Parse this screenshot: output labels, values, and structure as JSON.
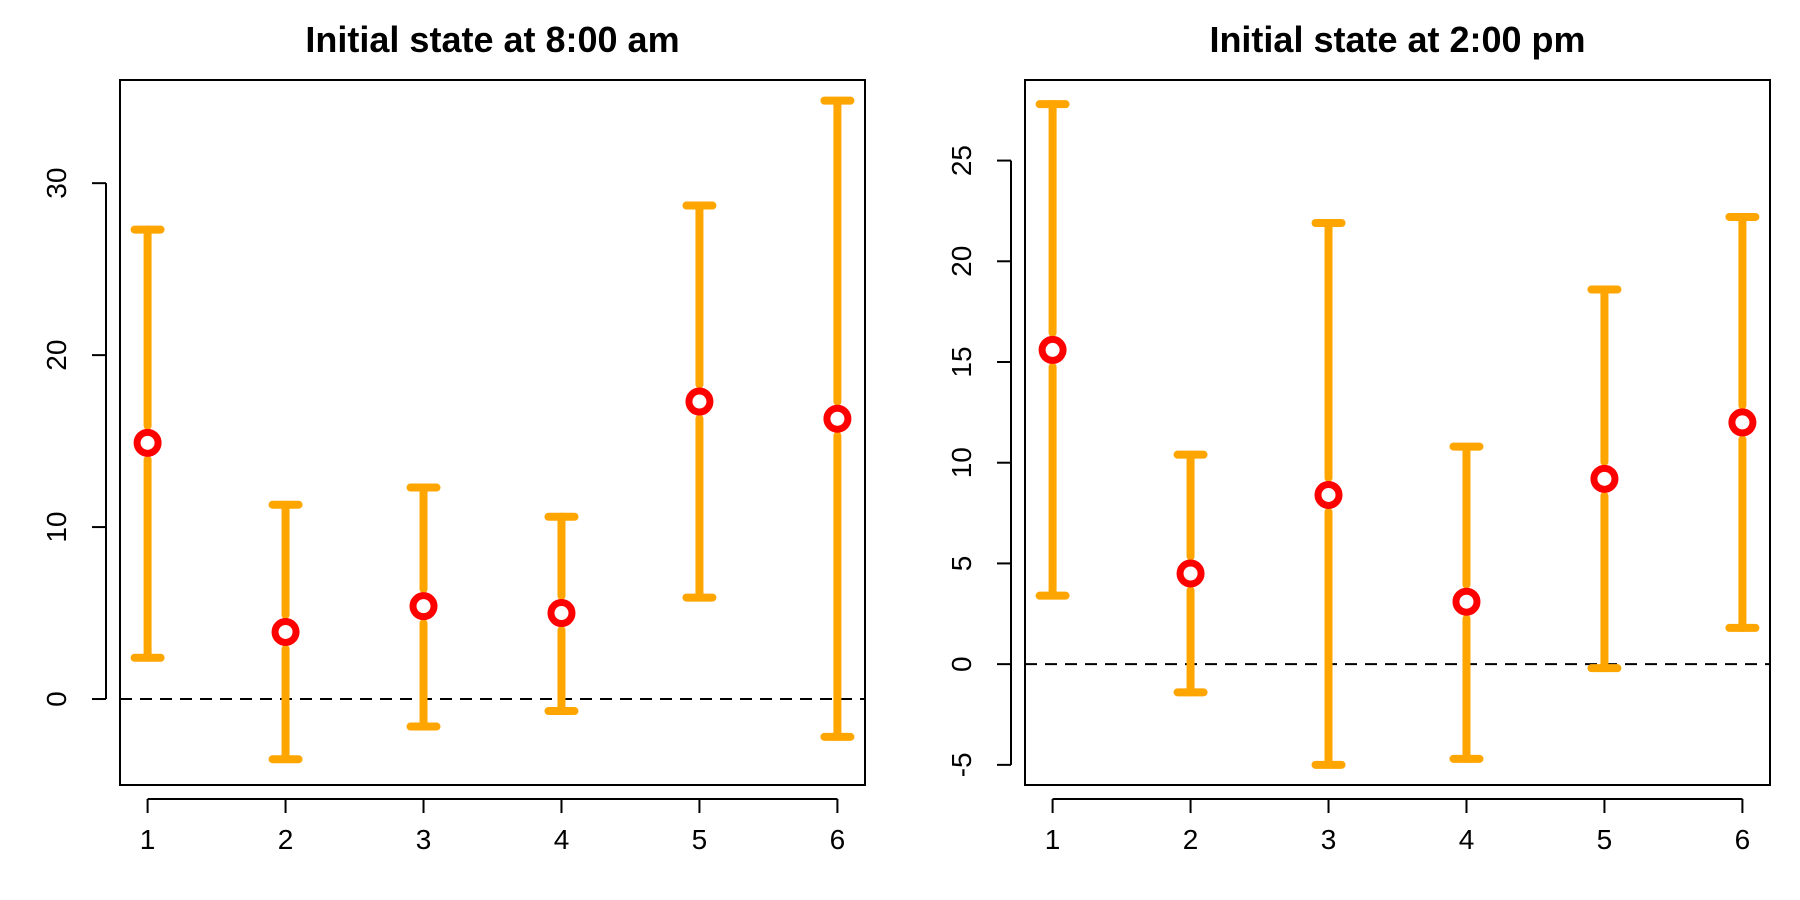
{
  "chart_data": [
    {
      "type": "errorbar",
      "title": "Initial state at 8:00 am",
      "xlabel": "",
      "ylabel": "",
      "categories": [
        "1",
        "2",
        "3",
        "4",
        "5",
        "6"
      ],
      "x": [
        1,
        2,
        3,
        4,
        5,
        6
      ],
      "estimate": [
        14.9,
        3.9,
        5.4,
        5.0,
        17.3,
        16.3
      ],
      "lower": [
        2.4,
        -3.5,
        -1.6,
        -0.7,
        5.9,
        -2.2
      ],
      "upper": [
        27.3,
        11.3,
        12.3,
        10.6,
        28.7,
        34.8
      ],
      "reference_line": 0,
      "xlim": [
        0.8,
        6.2
      ],
      "ylim": [
        -5,
        36
      ],
      "yticks": [
        0,
        10,
        20,
        30
      ],
      "grid": false,
      "colors": {
        "interval": "#FFA500",
        "point": "#FF0000",
        "reference": "#000000"
      }
    },
    {
      "type": "errorbar",
      "title": "Initial state at 2:00 pm",
      "xlabel": "",
      "ylabel": "",
      "categories": [
        "1",
        "2",
        "3",
        "4",
        "5",
        "6"
      ],
      "x": [
        1,
        2,
        3,
        4,
        5,
        6
      ],
      "estimate": [
        15.6,
        4.5,
        8.4,
        3.1,
        9.2,
        12.0
      ],
      "lower": [
        3.4,
        -1.4,
        -5.0,
        -4.7,
        -0.2,
        1.8
      ],
      "upper": [
        27.8,
        10.4,
        21.9,
        10.8,
        18.6,
        22.2
      ],
      "reference_line": 0,
      "xlim": [
        0.8,
        6.2
      ],
      "ylim": [
        -6,
        29
      ],
      "yticks": [
        -5,
        0,
        5,
        10,
        15,
        20,
        25
      ],
      "grid": false,
      "colors": {
        "interval": "#FFA500",
        "point": "#FF0000",
        "reference": "#000000"
      }
    }
  ]
}
